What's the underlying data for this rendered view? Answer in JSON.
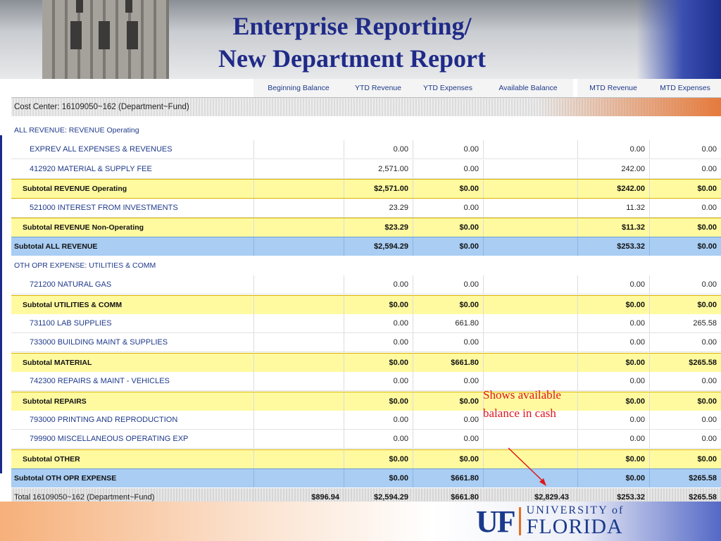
{
  "title": {
    "line1": "Enterprise Reporting/",
    "line2": "New Department Report"
  },
  "columns": [
    "Beginning Balance",
    "YTD Revenue",
    "YTD Expenses",
    "Available Balance",
    "MTD Revenue",
    "MTD Expenses"
  ],
  "cost_center": "Cost Center: 16109050~162 (Department~Fund)",
  "rows": [
    {
      "type": "section",
      "label": "ALL REVENUE:   REVENUE Operating",
      "cells": [
        "",
        "",
        "",
        "",
        "",
        ""
      ]
    },
    {
      "type": "detail",
      "label": "EXPREV     ALL EXPENSES & REVENUES",
      "cells": [
        "",
        "0.00",
        "0.00",
        "",
        "0.00",
        "0.00"
      ]
    },
    {
      "type": "detail",
      "label": "412920     MATERIAL & SUPPLY FEE",
      "cells": [
        "",
        "2,571.00",
        "0.00",
        "",
        "242.00",
        "0.00"
      ]
    },
    {
      "type": "sub-y",
      "label": "Subtotal  REVENUE Operating",
      "cells": [
        "",
        "$2,571.00",
        "$0.00",
        "",
        "$242.00",
        "$0.00"
      ]
    },
    {
      "type": "detail",
      "label": "521000     INTEREST FROM INVESTMENTS",
      "cells": [
        "",
        "23.29",
        "0.00",
        "",
        "11.32",
        "0.00"
      ]
    },
    {
      "type": "sub-y",
      "label": "Subtotal  REVENUE Non-Operating",
      "cells": [
        "",
        "$23.29",
        "$0.00",
        "",
        "$11.32",
        "$0.00"
      ]
    },
    {
      "type": "sub-b",
      "label": "Subtotal  ALL REVENUE",
      "cells": [
        "",
        "$2,594.29",
        "$0.00",
        "",
        "$253.32",
        "$0.00"
      ]
    },
    {
      "type": "section",
      "label": "OTH OPR EXPENSE:  UTILITIES & COMM",
      "cells": [
        "",
        "",
        "",
        "",
        "",
        ""
      ]
    },
    {
      "type": "detail",
      "label": "721200     NATURAL GAS",
      "cells": [
        "",
        "0.00",
        "0.00",
        "",
        "0.00",
        "0.00"
      ]
    },
    {
      "type": "sub-y",
      "label": "Subtotal  UTILITIES & COMM",
      "cells": [
        "",
        "$0.00",
        "$0.00",
        "",
        "$0.00",
        "$0.00"
      ]
    },
    {
      "type": "detail",
      "label": "731100     LAB SUPPLIES",
      "cells": [
        "",
        "0.00",
        "661.80",
        "",
        "0.00",
        "265.58"
      ]
    },
    {
      "type": "detail",
      "label": "733000     BUILDING MAINT & SUPPLIES",
      "cells": [
        "",
        "0.00",
        "0.00",
        "",
        "0.00",
        "0.00"
      ]
    },
    {
      "type": "sub-y",
      "label": "Subtotal  MATERIAL",
      "cells": [
        "",
        "$0.00",
        "$661.80",
        "",
        "$0.00",
        "$265.58"
      ]
    },
    {
      "type": "detail",
      "label": "742300     REPAIRS & MAINT - VEHICLES",
      "cells": [
        "",
        "0.00",
        "0.00",
        "",
        "0.00",
        "0.00"
      ]
    },
    {
      "type": "sub-y",
      "label": "Subtotal  REPAIRS",
      "cells": [
        "",
        "$0.00",
        "$0.00",
        "",
        "$0.00",
        "$0.00"
      ]
    },
    {
      "type": "detail",
      "label": "793000     PRINTING AND REPRODUCTION",
      "cells": [
        "",
        "0.00",
        "0.00",
        "",
        "0.00",
        "0.00"
      ]
    },
    {
      "type": "detail",
      "label": "799900     MISCELLANEOUS OPERATING EXP",
      "cells": [
        "",
        "0.00",
        "0.00",
        "",
        "0.00",
        "0.00"
      ]
    },
    {
      "type": "sub-y",
      "label": "Subtotal  OTHER",
      "cells": [
        "",
        "$0.00",
        "$0.00",
        "",
        "$0.00",
        "$0.00"
      ]
    },
    {
      "type": "sub-b",
      "label": "Subtotal  OTH OPR EXPENSE",
      "cells": [
        "",
        "$0.00",
        "$661.80",
        "",
        "$0.00",
        "$265.58"
      ]
    },
    {
      "type": "total",
      "label": "Total 16109050~162 (Department~Fund)",
      "cells": [
        "$896.94",
        "$2,594.29",
        "$661.80",
        "$2,829.43",
        "$253.32",
        "$265.58"
      ]
    }
  ],
  "annotation": "Shows available balance in cash",
  "logo": {
    "uf": "UF",
    "university": "UNIVERSITY of",
    "florida": "FLORIDA"
  }
}
